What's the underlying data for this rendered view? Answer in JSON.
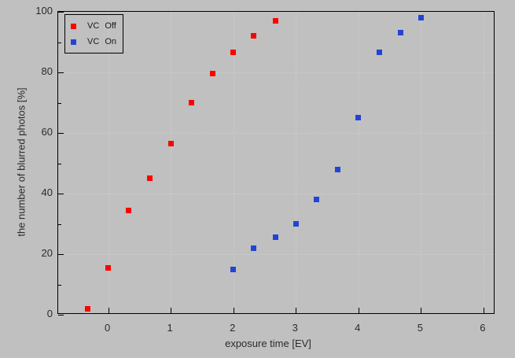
{
  "colors": {
    "background": "#c0c0c0",
    "frame": "#000000",
    "gridline": "#cdcdcd",
    "text": "#2b2b2b",
    "vc_off": "#ff0000",
    "vc_on": "#2244d4"
  },
  "legend": {
    "position": "top-left",
    "items": [
      {
        "label": "VC Off",
        "color": "#ff0000"
      },
      {
        "label": "VC On",
        "color": "#2244d4"
      }
    ]
  },
  "chart_data": {
    "type": "scatter",
    "title": "",
    "xlabel": "exposure time [EV]",
    "ylabel": "the number of blurred photos [%]",
    "xlim": [
      -0.8,
      6.19
    ],
    "ylim": [
      0,
      100
    ],
    "x_ticks": [
      0,
      1,
      2,
      3,
      4,
      5,
      6
    ],
    "y_major_ticks": [
      0,
      20,
      40,
      60,
      80,
      100
    ],
    "y_minor_ticks": [
      10,
      30,
      50,
      70,
      90
    ],
    "grid": {
      "vertical_at": [
        0,
        1,
        2,
        3,
        4,
        5,
        6
      ],
      "horizontal_at": [
        20,
        40,
        60,
        80
      ],
      "style": "dotted"
    },
    "legend_position": "top-left",
    "marker": "square",
    "series": [
      {
        "name": "VC Off",
        "color": "#ff0000",
        "points": [
          [
            -0.33,
            2
          ],
          [
            0,
            15.5
          ],
          [
            0.33,
            34.5
          ],
          [
            0.67,
            45
          ],
          [
            1,
            56.5
          ],
          [
            1.33,
            70
          ],
          [
            1.67,
            79.5
          ],
          [
            2,
            86.5
          ],
          [
            2.33,
            92
          ],
          [
            2.67,
            97
          ]
        ]
      },
      {
        "name": "VC On",
        "color": "#2244d4",
        "points": [
          [
            2,
            15
          ],
          [
            2.33,
            22
          ],
          [
            2.67,
            25.5
          ],
          [
            3,
            30
          ],
          [
            3.33,
            38
          ],
          [
            3.67,
            48
          ],
          [
            4,
            65
          ],
          [
            4.33,
            86.5
          ],
          [
            4.67,
            93
          ],
          [
            5,
            98
          ]
        ]
      }
    ]
  }
}
